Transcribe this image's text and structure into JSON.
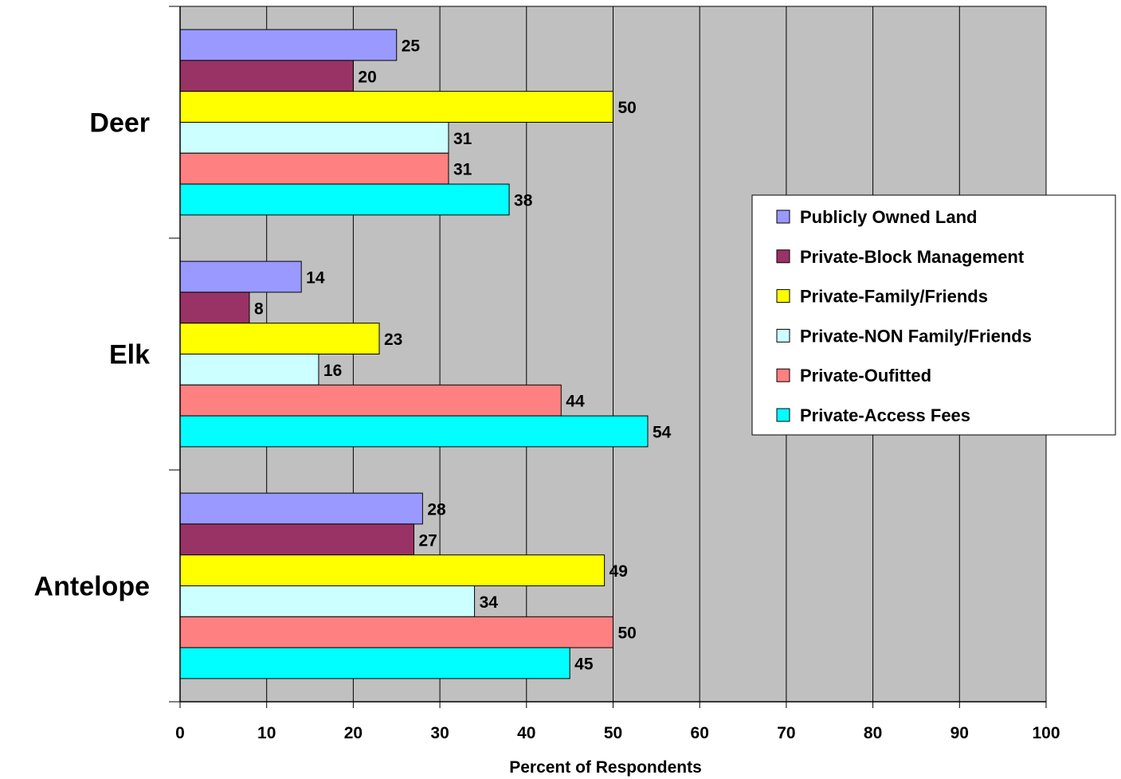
{
  "chart_data": {
    "type": "bar",
    "orientation": "horizontal",
    "categories": [
      "Deer",
      "Elk",
      "Antelope"
    ],
    "series": [
      {
        "name": "Publicly Owned Land",
        "color": "#9999FF",
        "values": [
          25,
          14,
          28
        ]
      },
      {
        "name": "Private-Block Management",
        "color": "#993366",
        "values": [
          20,
          8,
          27
        ]
      },
      {
        "name": "Private-Family/Friends",
        "color": "#FFFF00",
        "values": [
          50,
          23,
          49
        ]
      },
      {
        "name": "Private-NON Family/Friends",
        "color": "#CCFFFF",
        "values": [
          31,
          16,
          34
        ]
      },
      {
        "name": "Private-Oufitted",
        "color": "#FF8080",
        "values": [
          31,
          44,
          50
        ]
      },
      {
        "name": "Private-Access Fees",
        "color": "#00FFFF",
        "values": [
          38,
          54,
          45
        ]
      }
    ],
    "xlabel": "Percent of Respondents",
    "xlim": [
      0,
      100
    ],
    "x_ticks": [
      0,
      10,
      20,
      30,
      40,
      50,
      60,
      70,
      80,
      90,
      100
    ],
    "plot_background": "#C0C0C0",
    "grid": true,
    "legend_position": "right",
    "data_labels": true
  }
}
